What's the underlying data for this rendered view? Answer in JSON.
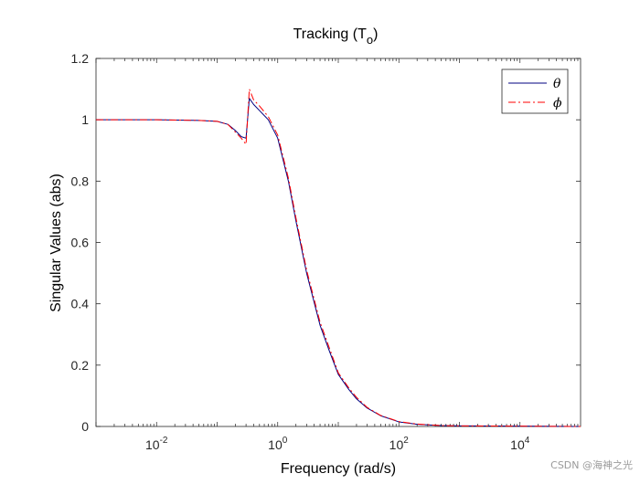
{
  "chart_data": {
    "type": "line",
    "title": "Tracking (T",
    "title_subscript": "o",
    "title_close": ")",
    "xlabel": "Frequency (rad/s)",
    "ylabel": "Singular Values (abs)",
    "xscale": "log",
    "xlim": [
      0.001,
      100000
    ],
    "ylim": [
      0,
      1.2
    ],
    "yticks": [
      0,
      0.2,
      0.4,
      0.6,
      0.8,
      1,
      1.2
    ],
    "ytick_labels": [
      "0",
      "0.2",
      "0.4",
      "0.6",
      "0.8",
      "1",
      "1.2"
    ],
    "xticks_exponent": [
      -2,
      0,
      2,
      4
    ],
    "xtick_base": "10",
    "xtick_exponent_labels": [
      "-2",
      "0",
      "2",
      "4"
    ],
    "legend_position": "top-right",
    "series": [
      {
        "name": "θ",
        "color": "#000080",
        "style": "solid",
        "x": [
          0.001,
          0.01,
          0.05,
          0.1,
          0.15,
          0.2,
          0.25,
          0.3,
          0.34,
          0.4,
          0.5,
          0.7,
          1.0,
          1.5,
          2.0,
          3.0,
          5.0,
          7.0,
          10,
          15,
          20,
          30,
          50,
          100,
          200,
          500,
          1000,
          10000,
          100000
        ],
        "values": [
          1.0,
          1.0,
          0.998,
          0.995,
          0.985,
          0.965,
          0.945,
          0.94,
          1.07,
          1.05,
          1.03,
          1.0,
          0.94,
          0.8,
          0.67,
          0.5,
          0.33,
          0.25,
          0.17,
          0.12,
          0.09,
          0.06,
          0.035,
          0.015,
          0.007,
          0.003,
          0.002,
          0.001,
          0.0
        ]
      },
      {
        "name": "ϕ",
        "color": "#ff0000",
        "style": "dashdot",
        "x": [
          0.001,
          0.01,
          0.05,
          0.1,
          0.15,
          0.2,
          0.25,
          0.3,
          0.34,
          0.4,
          0.5,
          0.7,
          1.0,
          1.5,
          2.0,
          3.0,
          5.0,
          7.0,
          10,
          15,
          20,
          30,
          50,
          100,
          200,
          500,
          1000,
          10000,
          100000
        ],
        "values": [
          1.0,
          1.0,
          0.998,
          0.995,
          0.985,
          0.96,
          0.94,
          0.92,
          1.1,
          1.065,
          1.045,
          1.01,
          0.95,
          0.81,
          0.68,
          0.51,
          0.34,
          0.26,
          0.175,
          0.125,
          0.095,
          0.062,
          0.036,
          0.016,
          0.008,
          0.003,
          0.002,
          0.001,
          0.0
        ]
      }
    ]
  },
  "watermark": "CSDN @海神之光"
}
